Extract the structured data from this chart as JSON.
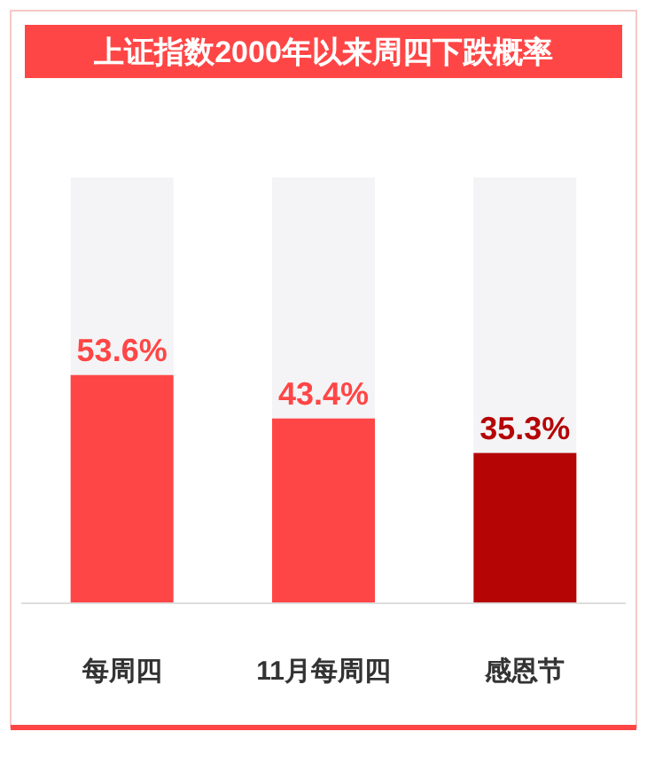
{
  "chart_data": {
    "type": "bar",
    "title": "上证指数2000年以来周四下跌概率",
    "categories": [
      "每周四",
      "11月每周四",
      "感恩节"
    ],
    "ylim": [
      0,
      100
    ],
    "series": [
      {
        "colors": [
          "#ff4646",
          "#ff4646",
          "#b50505"
        ],
        "values": [
          53.6,
          43.4,
          35.3
        ],
        "value_labels": [
          "53.6%",
          "43.4%",
          "35.3%"
        ]
      }
    ]
  }
}
